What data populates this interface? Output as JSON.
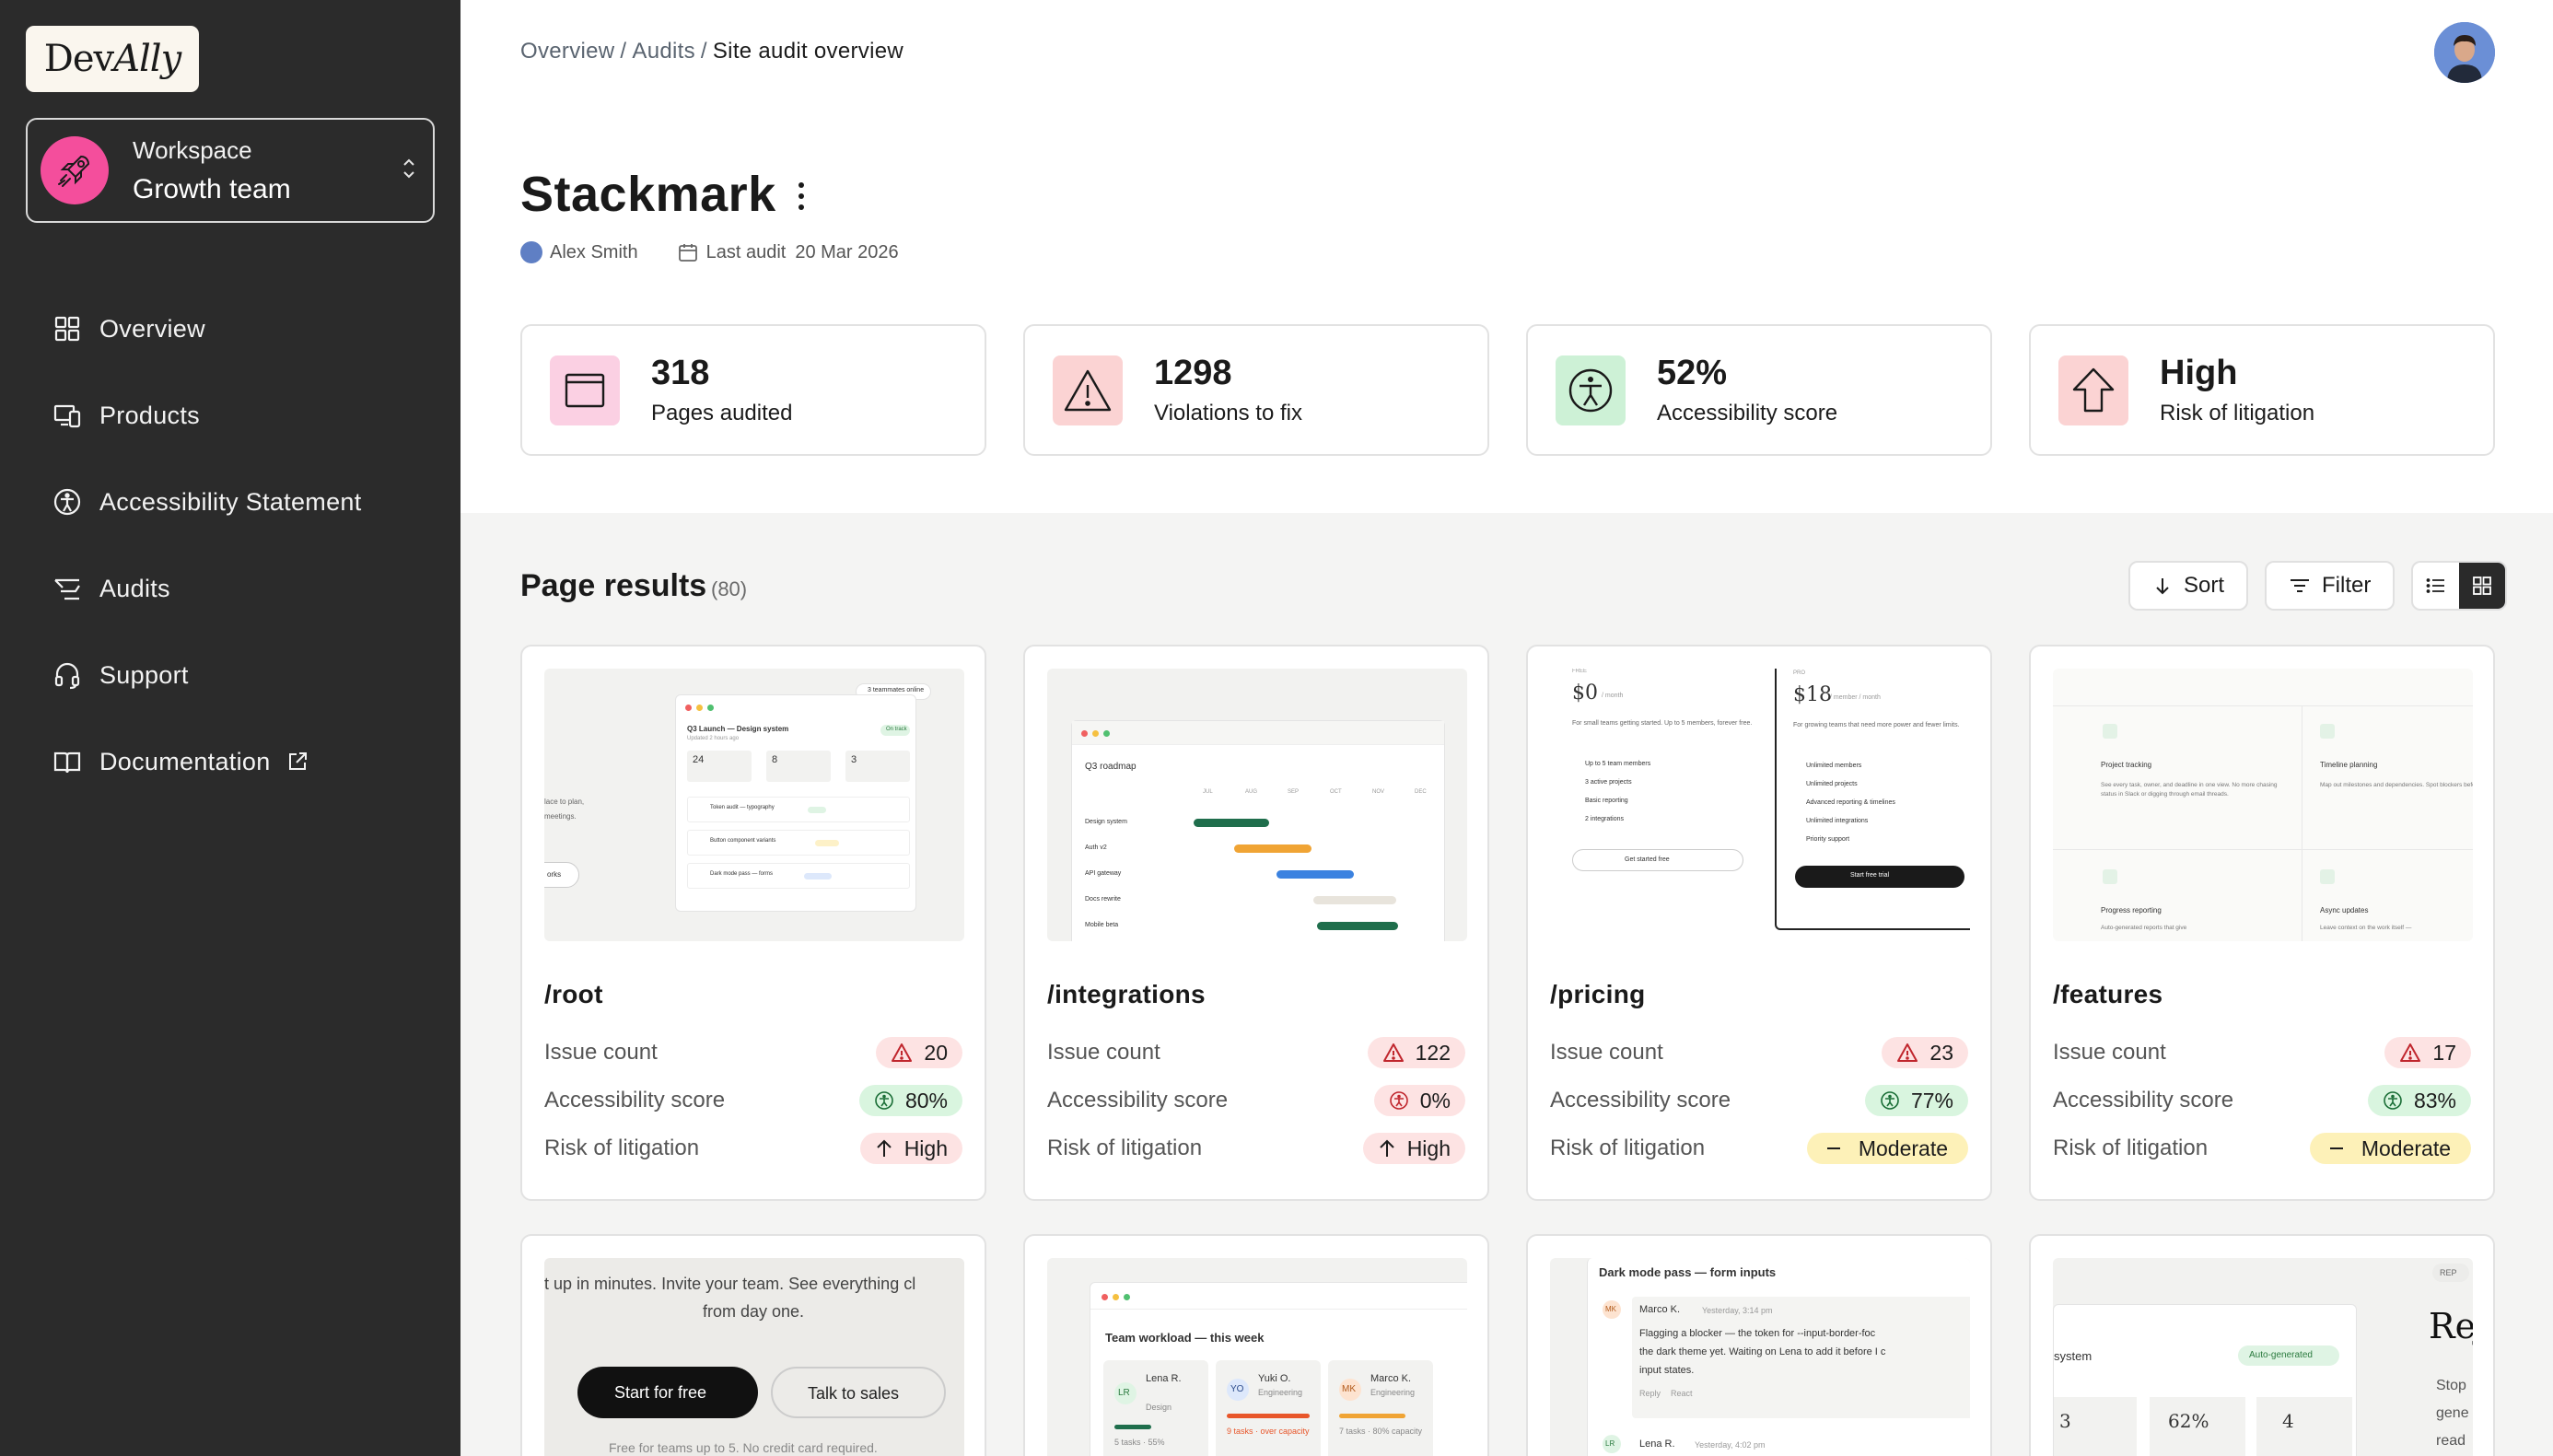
{
  "brand": {
    "logo_left": "Dev",
    "logo_right": "Ally"
  },
  "workspace": {
    "label": "Workspace",
    "name": "Growth team"
  },
  "nav": [
    {
      "label": "Overview",
      "icon": "grid-icon"
    },
    {
      "label": "Products",
      "icon": "devices-icon"
    },
    {
      "label": "Accessibility Statement",
      "icon": "accessibility-icon"
    },
    {
      "label": "Audits",
      "icon": "audit-icon"
    },
    {
      "label": "Support",
      "icon": "headset-icon"
    },
    {
      "label": "Documentation",
      "icon": "book-icon"
    }
  ],
  "breadcrumb": {
    "first": "Overview",
    "second": "Audits",
    "current": "Site audit overview"
  },
  "page": {
    "title": "Stackmark",
    "author": "Alex Smith",
    "last_audit_label": "Last audit",
    "last_audit_date": "20 Mar 2026"
  },
  "stats": [
    {
      "value": "318",
      "label": "Pages audited",
      "icon": "browser-window-icon",
      "color": "#fbd0e3"
    },
    {
      "value": "1298",
      "label": "Violations to fix",
      "icon": "warning-icon",
      "color": "#fbd3d3"
    },
    {
      "value": "52%",
      "label": "Accessibility score",
      "icon": "accessibility-icon",
      "color": "#cdf1d6"
    },
    {
      "value": "High",
      "label": "Risk of litigation",
      "icon": "arrow-up-icon",
      "color": "#fbd3d3"
    }
  ],
  "results": {
    "title": "Page results",
    "count": "(80)",
    "sort_label": "Sort",
    "filter_label": "Filter"
  },
  "row_labels": {
    "issues": "Issue count",
    "score": "Accessibility score",
    "risk": "Risk of litigation"
  },
  "cards": [
    {
      "path": "/root",
      "issues": "20",
      "score": "80%",
      "risk": "High"
    },
    {
      "path": "/integrations",
      "issues": "122",
      "score": "0%",
      "risk": "High"
    },
    {
      "path": "/pricing",
      "issues": "23",
      "score": "77%",
      "risk": "Moderate"
    },
    {
      "path": "/features",
      "issues": "17",
      "score": "83%",
      "risk": "Moderate"
    }
  ],
  "thumbs": {
    "root": {
      "badge": "3 teammates online",
      "heading": "Q3 Launch — Design system",
      "sub": "Updated 2 hours ago",
      "tag": "On track",
      "n1": "24",
      "n2": "8",
      "n3": "3",
      "t1": "Token audit — typography",
      "t2": "Button component variants",
      "t3": "Dark mode pass — forms",
      "side1": "lace to plan,",
      "side2": "meetings.",
      "side3": "orks"
    },
    "integrations": {
      "title": "Q3 roadmap",
      "months": [
        "JUL",
        "AUG",
        "SEP",
        "OCT",
        "NOV",
        "DEC"
      ],
      "rows": [
        "Design system",
        "Auth v2",
        "API gateway",
        "Docs rewrite",
        "Mobile beta"
      ]
    },
    "pricing": {
      "free_label": "FREE",
      "free_price": "$0",
      "free_unit": "/ month",
      "free_desc": "For small teams getting started. Up to 5 members, forever free.",
      "free_items": [
        "Up to 5 team members",
        "3 active projects",
        "Basic reporting",
        "2 integrations"
      ],
      "free_cta": "Get started free",
      "pro_label": "PRO",
      "pro_price": "$18",
      "pro_unit": "/ member / month",
      "pro_desc": "For growing teams that need more power and fewer limits.",
      "pro_items": [
        "Unlimited members",
        "Unlimited projects",
        "Advanced reporting & timelines",
        "Unlimited integrations",
        "Priority support"
      ],
      "pro_cta": "Start free trial"
    },
    "features": {
      "f1": "Project tracking",
      "f1d": "See every task, owner, and deadline in one view. No more chasing status in Slack or digging through email threads.",
      "f2": "Timeline planning",
      "f2d": "Map out milestones and dependencies. Spot blockers before they become problems and keep launches on sch",
      "f3": "Progress reporting",
      "f3d": "Auto-generated reports that give",
      "f4": "Async updates",
      "f4d": "Leave context on the work itself —"
    },
    "cta": {
      "text1": "t up in minutes. Invite your team. See everything cl",
      "text2": "from day one.",
      "primary": "Start for free",
      "secondary": "Talk to sales",
      "foot": "Free for teams up to 5. No credit card required."
    },
    "workload": {
      "title": "Team workload — this week",
      "p1i": "LR",
      "p1n": "Lena R.",
      "p1r": "Design",
      "p1s": "5 tasks · 55%",
      "p2i": "YO",
      "p2n": "Yuki O.",
      "p2r": "Engineering",
      "p2s": "9 tasks · over capacity",
      "p3i": "MK",
      "p3n": "Marco K.",
      "p3r": "Engineering",
      "p3s": "7 tasks · 80% capacity"
    },
    "comments": {
      "title": "Dark mode pass — form inputs",
      "c1i": "MK",
      "c1n": "Marco K.",
      "c1t": "Yesterday, 3:14 pm",
      "c1b1": "Flagging a blocker — the token for --input-border-foc",
      "c1b2": "the dark theme yet. Waiting on Lena to add it before I c",
      "c1b3": "input states.",
      "reply": "Reply",
      "react": "React",
      "c2i": "LR",
      "c2n": "Lena R.",
      "c2t": "Yesterday, 4:02 pm"
    },
    "report": {
      "badge": "REP",
      "big": "Rej",
      "sys": "system",
      "auto": "Auto-generated",
      "n1": "3",
      "n2": "62%",
      "n3": "4",
      "s1": "Stop",
      "s2": "gene",
      "s3": "read"
    }
  }
}
